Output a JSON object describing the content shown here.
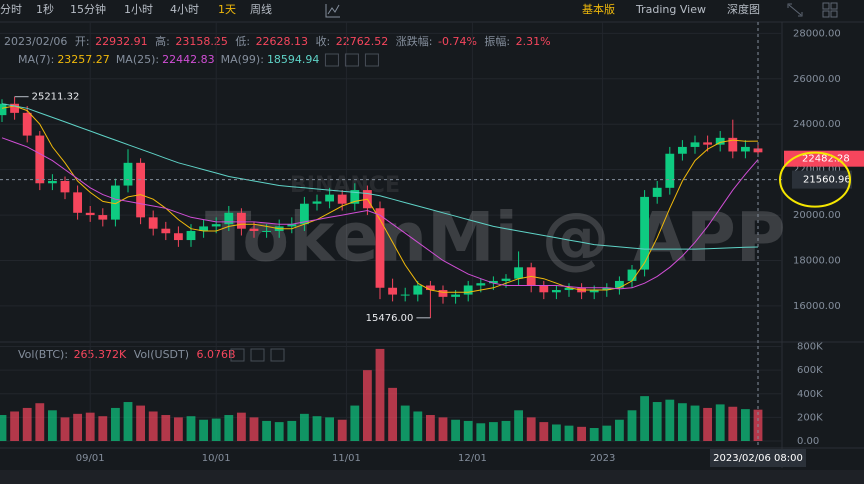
{
  "toolbar": {
    "intervals": [
      "分时",
      "1秒",
      "15分钟",
      "1小时",
      "4小时",
      "1天",
      "周线"
    ],
    "active_interval": "1天",
    "views": [
      "基本版",
      "Trading View",
      "深度图"
    ],
    "active_view": "基本版"
  },
  "chart_data": {
    "type": "candlestick",
    "date": "2023/02/06",
    "info_labels": {
      "open": "开:",
      "high": "高:",
      "low": "低:",
      "close": "收:",
      "change": "涨跌幅:",
      "amplitude": "振幅:"
    },
    "change": "-0.74%",
    "amplitude": "2.31%",
    "up_color": "#0ecb81",
    "down_color": "#f6465d",
    "grid": true,
    "x": [
      0,
      3,
      6,
      9,
      12,
      15,
      18,
      21,
      24,
      27,
      30,
      33,
      36,
      39,
      42,
      45,
      48,
      51,
      54,
      57,
      60,
      63,
      66,
      69,
      72,
      75,
      78,
      81,
      84,
      87,
      90,
      93,
      96,
      99,
      102,
      105,
      108,
      111,
      114,
      117,
      120,
      123,
      126,
      129,
      132,
      135,
      138,
      141,
      144,
      147,
      150,
      153,
      156,
      159,
      162,
      165,
      168,
      171,
      174,
      177,
      180
    ],
    "xlim": [
      0,
      183
    ],
    "xticks": [
      {
        "value": 21,
        "label": "09/01"
      },
      {
        "value": 51,
        "label": "10/01"
      },
      {
        "value": 82,
        "label": "11/01"
      },
      {
        "value": 112,
        "label": "12/01"
      },
      {
        "value": 143,
        "label": "2023"
      }
    ],
    "ylim": [
      14500,
      28500
    ],
    "yticks": [
      {
        "value": 16000,
        "label": "16000.00"
      },
      {
        "value": 18000,
        "label": "18000.00"
      },
      {
        "value": 20000,
        "label": "20000.00"
      },
      {
        "value": 22000,
        "label": "22000.00"
      },
      {
        "value": 24000,
        "label": "24000.00"
      },
      {
        "value": 26000,
        "label": "26000.00"
      },
      {
        "value": 28000,
        "label": "28000.00"
      }
    ],
    "open": [
      24400,
      24900,
      24500,
      23500,
      21400,
      21500,
      21000,
      20100,
      20000,
      19800,
      21300,
      22300,
      19900,
      19400,
      19200,
      18900,
      19300,
      19500,
      19600,
      20100,
      19400,
      19300,
      19300,
      19500,
      19600,
      20500,
      20600,
      20900,
      20500,
      21100,
      20300,
      16800,
      16500,
      16500,
      16900,
      16700,
      16400,
      16500,
      16900,
      17000,
      17100,
      17200,
      17700,
      16900,
      16600,
      16700,
      16800,
      16600,
      16700,
      16800,
      17100,
      17600,
      20800,
      21200,
      22700,
      23000,
      23200,
      23100,
      23400,
      22800,
      22932.91
    ],
    "high": [
      25100,
      25211.32,
      24800,
      23700,
      21800,
      21700,
      21300,
      20400,
      20300,
      21600,
      22900,
      22500,
      20200,
      19700,
      19500,
      19600,
      19800,
      19900,
      20400,
      20300,
      19700,
      19600,
      19800,
      19900,
      20800,
      20900,
      21200,
      21100,
      21400,
      21300,
      20600,
      17200,
      16800,
      17100,
      17100,
      16900,
      16700,
      17100,
      17200,
      17300,
      17400,
      18400,
      17900,
      17100,
      16900,
      17000,
      17000,
      16900,
      17000,
      17300,
      17800,
      21100,
      21500,
      23000,
      23300,
      23500,
      23500,
      23700,
      24200,
      23300,
      23158.25
    ],
    "low": [
      24100,
      24200,
      23200,
      21100,
      21100,
      20700,
      19800,
      19700,
      19500,
      19500,
      21000,
      19600,
      19100,
      18900,
      18600,
      18600,
      19000,
      19200,
      19300,
      19100,
      19000,
      19000,
      19000,
      19200,
      19300,
      20200,
      20300,
      20200,
      20200,
      20000,
      16300,
      16200,
      16200,
      16200,
      15476,
      16100,
      16100,
      16200,
      16600,
      16700,
      16800,
      16900,
      16600,
      16300,
      16300,
      16400,
      16300,
      16300,
      16400,
      16500,
      16800,
      17300,
      20500,
      20900,
      22400,
      22700,
      22800,
      22800,
      22500,
      22500,
      22628.13
    ],
    "close": [
      24900,
      24500,
      23500,
      21400,
      21500,
      21000,
      20100,
      20000,
      19800,
      21300,
      22300,
      19900,
      19400,
      19200,
      18900,
      19300,
      19500,
      19600,
      20100,
      19400,
      19300,
      19300,
      19500,
      19600,
      20500,
      20600,
      20900,
      20500,
      21100,
      20300,
      16800,
      16500,
      16500,
      16900,
      16700,
      16400,
      16500,
      16900,
      17000,
      17100,
      17200,
      17700,
      16900,
      16600,
      16700,
      16800,
      16600,
      16700,
      16800,
      17100,
      17600,
      20800,
      21200,
      22700,
      23000,
      23200,
      23100,
      23400,
      22800,
      23000,
      22762.52
    ],
    "max_label": "25211.32",
    "min_label": "15476.00",
    "last_price": 22482.28,
    "crosshair_price": 21560.96,
    "crosshair_date": "2023/02/06 08:00",
    "watermarks": [
      "BINANCE",
      "TokenMi @ APP"
    ],
    "series": [
      {
        "name": "MA(7):",
        "color": "#f0b90b",
        "values": [
          24700,
          24800,
          24600,
          24000,
          23000,
          22300,
          21500,
          21000,
          20600,
          20500,
          20800,
          20900,
          20700,
          20300,
          19800,
          19400,
          19300,
          19300,
          19500,
          19600,
          19600,
          19500,
          19400,
          19400,
          19600,
          19800,
          20100,
          20400,
          20600,
          20700,
          19800,
          18800,
          17800,
          17000,
          16700,
          16600,
          16600,
          16600,
          16700,
          16800,
          17000,
          17200,
          17300,
          17200,
          17000,
          16800,
          16700,
          16700,
          16700,
          16800,
          17100,
          17900,
          19000,
          20300,
          21500,
          22400,
          22900,
          23200,
          23300,
          23250,
          23257.27
        ]
      },
      {
        "name": "MA(25):",
        "color": "#d04ed5",
        "values": [
          23400,
          23200,
          23000,
          22700,
          22400,
          22000,
          21600,
          21200,
          20900,
          20700,
          20600,
          20500,
          20400,
          20300,
          20100,
          19900,
          19800,
          19700,
          19700,
          19700,
          19700,
          19650,
          19600,
          19600,
          19700,
          19800,
          19900,
          20000,
          20100,
          20200,
          20000,
          19600,
          19200,
          18800,
          18400,
          18000,
          17700,
          17400,
          17200,
          17000,
          16900,
          16900,
          16900,
          16900,
          16900,
          16850,
          16800,
          16800,
          16800,
          16750,
          16800,
          17000,
          17300,
          17700,
          18200,
          18800,
          19500,
          20300,
          21100,
          21800,
          22442.83
        ]
      },
      {
        "name": "MA(99):",
        "color": "#5fd3c7",
        "values": [
          24900,
          24800,
          24700,
          24500,
          24300,
          24100,
          23900,
          23700,
          23500,
          23300,
          23100,
          22900,
          22700,
          22500,
          22300,
          22150,
          22000,
          21850,
          21700,
          21600,
          21500,
          21400,
          21300,
          21250,
          21200,
          21150,
          21100,
          21050,
          21000,
          20950,
          20850,
          20700,
          20550,
          20400,
          20250,
          20100,
          19950,
          19800,
          19650,
          19500,
          19400,
          19300,
          19200,
          19100,
          19000,
          18900,
          18800,
          18700,
          18650,
          18600,
          18550,
          18500,
          18500,
          18500,
          18500,
          18500,
          18520,
          18540,
          18560,
          18580,
          18594.94
        ]
      }
    ],
    "volume": {
      "name": "Vol(BTC):",
      "current_label": "265.372K",
      "quote_name": "Vol(USDT)",
      "quote_label": "6.076B",
      "values": [
        220000,
        250000,
        280000,
        320000,
        260000,
        200000,
        230000,
        240000,
        210000,
        280000,
        330000,
        300000,
        250000,
        220000,
        200000,
        210000,
        180000,
        190000,
        220000,
        240000,
        200000,
        170000,
        160000,
        170000,
        230000,
        210000,
        200000,
        180000,
        300000,
        600000,
        780000,
        450000,
        300000,
        250000,
        220000,
        200000,
        180000,
        170000,
        150000,
        160000,
        170000,
        260000,
        200000,
        160000,
        140000,
        130000,
        120000,
        110000,
        130000,
        180000,
        260000,
        380000,
        330000,
        350000,
        320000,
        300000,
        280000,
        310000,
        290000,
        270000,
        265372
      ],
      "ylim": [
        0,
        830000
      ],
      "yticks": [
        {
          "value": 0,
          "label": "0.00"
        },
        {
          "value": 200000,
          "label": "200K"
        },
        {
          "value": 400000,
          "label": "400K"
        },
        {
          "value": 600000,
          "label": "600K"
        },
        {
          "value": 800000,
          "label": "800K"
        }
      ]
    }
  }
}
